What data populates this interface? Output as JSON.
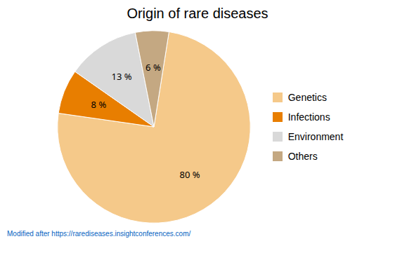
{
  "chart_data": {
    "type": "pie",
    "title": "Origin of rare diseases",
    "categories": [
      "Genetics",
      "Infections",
      "Environment",
      "Others"
    ],
    "values": [
      80,
      8,
      13,
      6
    ],
    "value_labels": [
      "80 %",
      "8 %",
      "13 %",
      "6 %"
    ],
    "data_labels": true,
    "colors": [
      "#F5C98A",
      "#E87E00",
      "#D9D9D9",
      "#C4A882"
    ],
    "legend": "right",
    "footnote": "Modified after https://rarediseases.insightconferences.com/"
  }
}
